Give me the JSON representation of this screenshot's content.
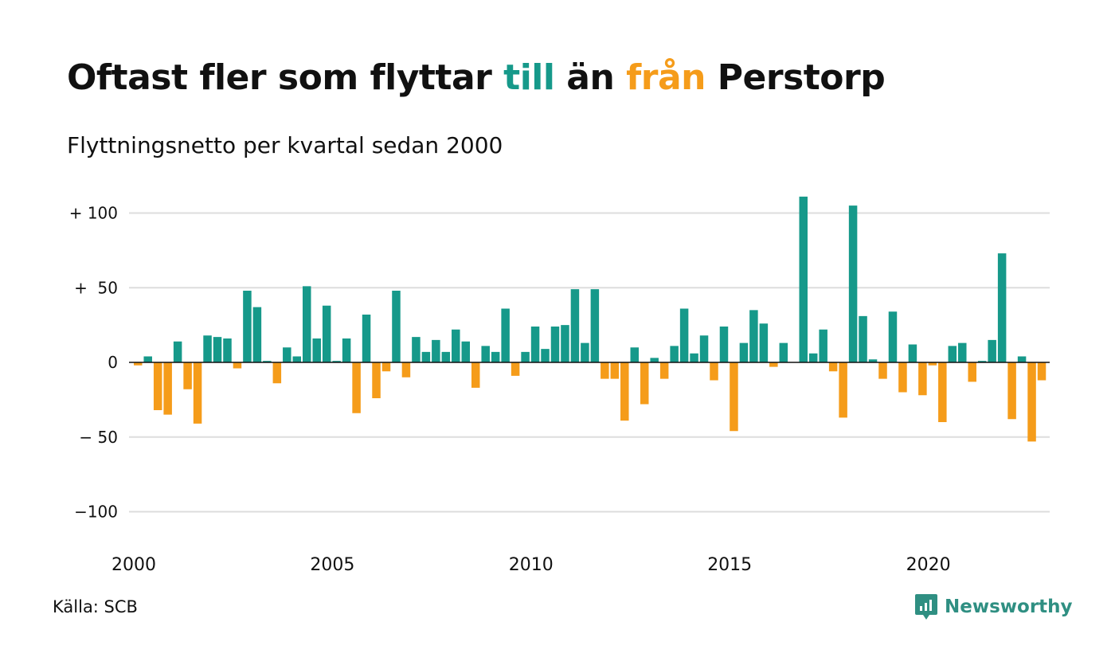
{
  "title": {
    "part1": "Oftast fler som flyttar ",
    "till": "till",
    "part2": " än ",
    "fran": "från",
    "part3": " Perstorp"
  },
  "subtitle": "Flyttningsnetto per kvartal sedan 2000",
  "source": "Källa: SCB",
  "brand": {
    "name": "Newsworthy",
    "icon": "newsworthy-logo-icon"
  },
  "colors": {
    "positive": "#16998a",
    "negative": "#f59c1a",
    "grid": "#dddddd",
    "brand": "#2f8f82"
  },
  "chart_data": {
    "type": "bar",
    "x_start_year": 2000,
    "periods_per_year": 4,
    "y_ticks": [
      100,
      50,
      0,
      -50,
      -100
    ],
    "y_tick_labels": [
      "+ 100",
      "+  50",
      "0",
      "− 50",
      "−100"
    ],
    "x_ticks": [
      "2000",
      "2005",
      "2010",
      "2015",
      "2020"
    ],
    "ylim": [
      -115,
      115
    ],
    "grid": true,
    "values": [
      -2,
      4,
      -32,
      -35,
      14,
      -18,
      -41,
      18,
      17,
      16,
      -4,
      48,
      37,
      1,
      -14,
      10,
      4,
      51,
      16,
      38,
      1,
      16,
      -34,
      32,
      -24,
      -6,
      48,
      -10,
      17,
      7,
      15,
      7,
      22,
      14,
      -17,
      11,
      7,
      36,
      -9,
      7,
      24,
      9,
      24,
      25,
      49,
      13,
      49,
      -11,
      -11,
      -39,
      10,
      -28,
      3,
      -11,
      11,
      36,
      6,
      18,
      -12,
      24,
      -46,
      13,
      35,
      26,
      -3,
      13,
      0,
      111,
      6,
      22,
      -6,
      -37,
      105,
      31,
      2,
      -11,
      34,
      -20,
      12,
      -22,
      -2,
      -40,
      11,
      13,
      -13,
      1,
      15,
      73,
      -38,
      4,
      -53,
      -12
    ]
  }
}
